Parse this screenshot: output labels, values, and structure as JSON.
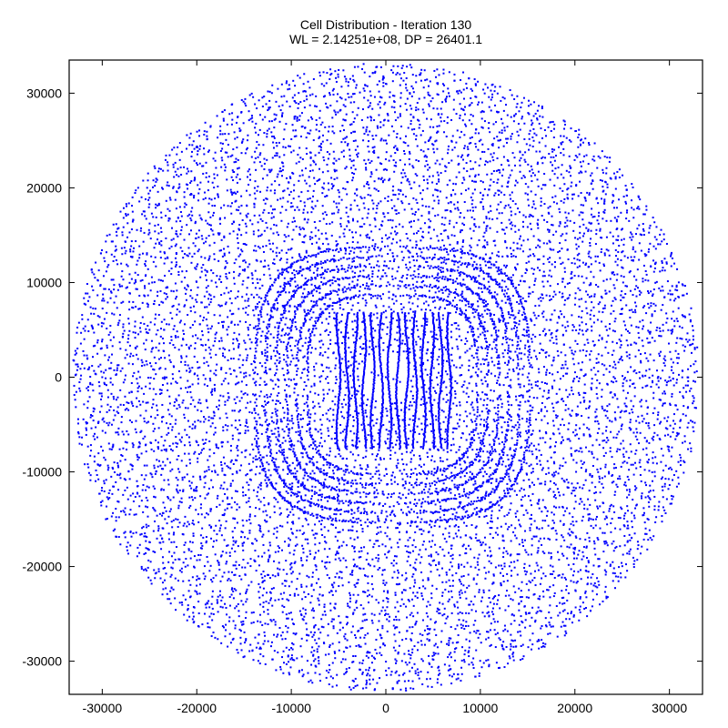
{
  "chart_data": {
    "type": "scatter",
    "title": "Cell Distribution - Iteration 130",
    "subtitle": "WL = 2.14251e+08, DP = 26401.1",
    "xlabel": "",
    "ylabel": "",
    "xlim": [
      -33500,
      33500
    ],
    "ylim": [
      -33500,
      33500
    ],
    "x_ticks": [
      -30000,
      -20000,
      -10000,
      0,
      10000,
      20000,
      30000
    ],
    "y_ticks": [
      30000,
      20000,
      10000,
      0,
      -10000,
      -20000,
      -30000
    ],
    "x_tick_labels": [
      "-30000",
      "-20000",
      "-10000",
      "0",
      "10000",
      "20000",
      "30000"
    ],
    "y_tick_labels": [
      "30000",
      "20000",
      "10000",
      "0",
      "-10000",
      "-20000",
      "-30000"
    ],
    "grid": false,
    "marker_color": "#0000ff",
    "series": [
      {
        "values_summary": "dense cloud of cell positions",
        "points": [
          [
            -1500,
            500
          ],
          [
            -800,
            200
          ],
          [
            0,
            0
          ],
          [
            800,
            -200
          ],
          [
            1500,
            -500
          ],
          [
            -2500,
            3000
          ],
          [
            -2500,
            -3000
          ],
          [
            2500,
            3000
          ],
          [
            2500,
            -3000
          ],
          [
            -4000,
            1000
          ],
          [
            4000,
            -1000
          ],
          [
            -5000,
            5000
          ],
          [
            5000,
            -5000
          ],
          [
            -7000,
            0
          ],
          [
            7000,
            0
          ],
          [
            0,
            7000
          ],
          [
            0,
            -7000
          ],
          [
            -10000,
            5000
          ],
          [
            10000,
            -5000
          ],
          [
            -12000,
            -6000
          ],
          [
            12000,
            6000
          ],
          [
            -15000,
            0
          ],
          [
            15000,
            0
          ],
          [
            0,
            15000
          ],
          [
            0,
            -15000
          ],
          [
            -18000,
            10000
          ],
          [
            18000,
            -10000
          ],
          [
            -20000,
            -12000
          ],
          [
            20000,
            12000
          ],
          [
            -25000,
            5000
          ],
          [
            25000,
            -5000
          ],
          [
            0,
            25000
          ],
          [
            0,
            -25000
          ],
          [
            -28000,
            12000
          ],
          [
            28000,
            -12000
          ],
          [
            -22000,
            22000
          ],
          [
            22000,
            -22000
          ],
          [
            -30000,
            0
          ],
          [
            30000,
            0
          ],
          [
            0,
            31000
          ],
          [
            0,
            -31000
          ]
        ]
      }
    ]
  }
}
